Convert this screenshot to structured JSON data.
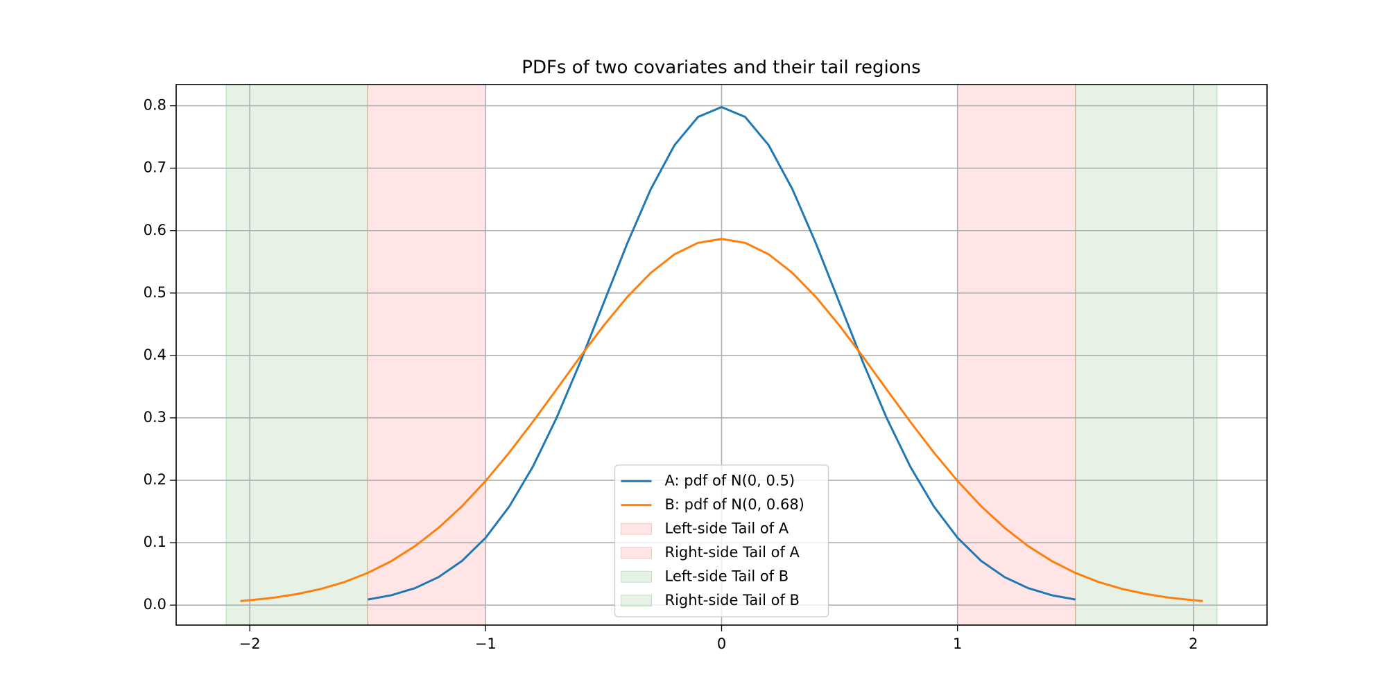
{
  "chart_data": {
    "type": "line",
    "title": "PDFs of two covariates and their tail regions",
    "series": [
      {
        "name": "A: pdf of N(0, 0.5)",
        "color": "#1f77b4",
        "x": [
          -1.5,
          -1.4,
          -1.3,
          -1.2,
          -1.1,
          -1.0,
          -0.9,
          -0.8,
          -0.7,
          -0.6,
          -0.5,
          -0.4,
          -0.3,
          -0.2,
          -0.1,
          0,
          0.1,
          0.2,
          0.3,
          0.4,
          0.5,
          0.6,
          0.7,
          0.8,
          0.9,
          1.0,
          1.1,
          1.2,
          1.3,
          1.4,
          1.5
        ],
        "values": [
          0.0089,
          0.0158,
          0.0272,
          0.0448,
          0.0709,
          0.108,
          0.1579,
          0.2218,
          0.2995,
          0.3884,
          0.4839,
          0.5794,
          0.6665,
          0.7366,
          0.7821,
          0.7979,
          0.7821,
          0.7366,
          0.6665,
          0.5794,
          0.4839,
          0.3884,
          0.2995,
          0.2218,
          0.1579,
          0.108,
          0.0709,
          0.0448,
          0.0272,
          0.0158,
          0.0089
        ]
      },
      {
        "name": "B: pdf of N(0, 0.68)",
        "color": "#ff7f0e",
        "x": [
          -2.04,
          -2.0,
          -1.9,
          -1.8,
          -1.7,
          -1.6,
          -1.5,
          -1.4,
          -1.3,
          -1.2,
          -1.1,
          -1.0,
          -0.9,
          -0.8,
          -0.7,
          -0.6,
          -0.5,
          -0.4,
          -0.3,
          -0.2,
          -0.1,
          0,
          0.1,
          0.2,
          0.3,
          0.4,
          0.5,
          0.6,
          0.7,
          0.8,
          0.9,
          1.0,
          1.1,
          1.2,
          1.3,
          1.4,
          1.5,
          1.6,
          1.7,
          1.8,
          1.9,
          2.0,
          2.04
        ],
        "values": [
          0.0065,
          0.0078,
          0.0118,
          0.0177,
          0.0258,
          0.0368,
          0.0515,
          0.0705,
          0.0944,
          0.1237,
          0.1586,
          0.199,
          0.2444,
          0.2937,
          0.3454,
          0.3975,
          0.4477,
          0.4935,
          0.5323,
          0.5619,
          0.5804,
          0.5867,
          0.5804,
          0.5619,
          0.5323,
          0.4935,
          0.4477,
          0.3975,
          0.3454,
          0.2937,
          0.2444,
          0.199,
          0.1586,
          0.1237,
          0.0944,
          0.0705,
          0.0515,
          0.0368,
          0.0258,
          0.0177,
          0.0118,
          0.0078,
          0.0065
        ]
      }
    ],
    "spans": [
      {
        "name": "Left-side Tail of A",
        "color": "#ff0000",
        "alpha": 0.1,
        "range": [
          -1.5,
          -1.0
        ]
      },
      {
        "name": "Right-side Tail of A",
        "color": "#ff0000",
        "alpha": 0.1,
        "range": [
          1.0,
          1.5
        ]
      },
      {
        "name": "Left-side Tail of B",
        "color": "#008000",
        "alpha": 0.1,
        "range": [
          -2.1,
          -1.5
        ]
      },
      {
        "name": "Right-side Tail of B",
        "color": "#008000",
        "alpha": 0.1,
        "range": [
          1.5,
          2.1
        ]
      }
    ],
    "xlim": [
      -2.312,
      2.312
    ],
    "ylim": [
      -0.032,
      0.834
    ],
    "xticks": [
      {
        "value": -2,
        "label": "−2"
      },
      {
        "value": -1,
        "label": "−1"
      },
      0,
      1,
      2
    ],
    "yticks": [
      {
        "value": 0,
        "label": "0.0"
      },
      0.1,
      0.2,
      0.3,
      0.4,
      0.5,
      0.6,
      0.7,
      0.8
    ],
    "grid": true,
    "legend": "lower center"
  }
}
